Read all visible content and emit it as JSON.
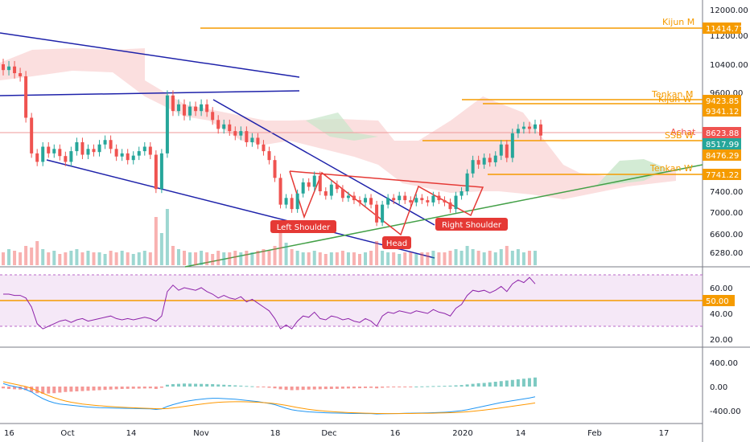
{
  "chart_data": {
    "type": "candlestick",
    "main_pane": {
      "y_ticks": [
        "12000.00",
        "11200.00",
        "10400.00",
        "9600.00",
        "7400.00",
        "7000.00",
        "6600.00",
        "6280.00"
      ],
      "price_tags": [
        {
          "text": "11414.77",
          "color": "#f59b00"
        },
        {
          "text": "9423.85",
          "color": "#f59b00"
        },
        {
          "text": "9341.12",
          "color": "#f59b00"
        },
        {
          "text": "8623.88",
          "color": "#ef5350"
        },
        {
          "text": "8517.99",
          "color": "#26a69a"
        },
        {
          "text": "8476.29",
          "color": "#f59b00"
        },
        {
          "text": "7741.22",
          "color": "#f59b00"
        }
      ],
      "levels": [
        {
          "label": "Kijun M",
          "color": "#f59b00"
        },
        {
          "label": "Tenkan M",
          "color": "#f59b00"
        },
        {
          "label": "Kijun W",
          "color": "#f59b00"
        },
        {
          "label": "Achat",
          "color": "#ef5350"
        },
        {
          "label": "SSB W",
          "color": "#f59b00"
        },
        {
          "label": "Tenkan W",
          "color": "#f59b00"
        }
      ],
      "annotations": [
        "Left Shoulder",
        "Head",
        "Right Shoulder"
      ],
      "candles": [
        {
          "o": 10250,
          "c": 10120
        },
        {
          "o": 10120,
          "c": 10200
        },
        {
          "o": 10200,
          "c": 10050
        },
        {
          "o": 10050,
          "c": 9980
        },
        {
          "o": 9980,
          "c": 9050
        },
        {
          "o": 9050,
          "c": 8250
        },
        {
          "o": 8250,
          "c": 8060
        },
        {
          "o": 8060,
          "c": 8400
        },
        {
          "o": 8400,
          "c": 8250
        },
        {
          "o": 8250,
          "c": 8350
        },
        {
          "o": 8350,
          "c": 8190
        },
        {
          "o": 8190,
          "c": 8060
        },
        {
          "o": 8060,
          "c": 8300
        },
        {
          "o": 8300,
          "c": 8500
        },
        {
          "o": 8500,
          "c": 8220
        },
        {
          "o": 8220,
          "c": 8350
        },
        {
          "o": 8350,
          "c": 8280
        },
        {
          "o": 8280,
          "c": 8450
        },
        {
          "o": 8450,
          "c": 8550
        },
        {
          "o": 8550,
          "c": 8350
        },
        {
          "o": 8350,
          "c": 8180
        },
        {
          "o": 8180,
          "c": 8250
        },
        {
          "o": 8250,
          "c": 8100
        },
        {
          "o": 8100,
          "c": 8200
        },
        {
          "o": 8200,
          "c": 8300
        },
        {
          "o": 8300,
          "c": 8400
        },
        {
          "o": 8400,
          "c": 8220
        },
        {
          "o": 8220,
          "c": 7450
        },
        {
          "o": 7450,
          "c": 8250
        },
        {
          "o": 8250,
          "c": 9550
        },
        {
          "o": 9550,
          "c": 9200
        },
        {
          "o": 9200,
          "c": 9350
        },
        {
          "o": 9350,
          "c": 9100
        },
        {
          "o": 9100,
          "c": 9300
        },
        {
          "o": 9300,
          "c": 9200
        },
        {
          "o": 9200,
          "c": 9350
        },
        {
          "o": 9350,
          "c": 9180
        },
        {
          "o": 9180,
          "c": 9000
        },
        {
          "o": 9000,
          "c": 8800
        },
        {
          "o": 8800,
          "c": 8900
        },
        {
          "o": 8900,
          "c": 8750
        },
        {
          "o": 8750,
          "c": 8650
        },
        {
          "o": 8650,
          "c": 8750
        },
        {
          "o": 8750,
          "c": 8500
        },
        {
          "o": 8500,
          "c": 8600
        },
        {
          "o": 8600,
          "c": 8450
        },
        {
          "o": 8450,
          "c": 8300
        },
        {
          "o": 8300,
          "c": 8100
        },
        {
          "o": 8100,
          "c": 7700
        },
        {
          "o": 7700,
          "c": 7100
        },
        {
          "o": 7100,
          "c": 7250
        },
        {
          "o": 7250,
          "c": 7000
        },
        {
          "o": 7000,
          "c": 7350
        },
        {
          "o": 7350,
          "c": 7600
        },
        {
          "o": 7600,
          "c": 7500
        },
        {
          "o": 7500,
          "c": 7750
        },
        {
          "o": 7750,
          "c": 7400
        },
        {
          "o": 7400,
          "c": 7300
        },
        {
          "o": 7300,
          "c": 7550
        },
        {
          "o": 7550,
          "c": 7450
        },
        {
          "o": 7450,
          "c": 7250
        },
        {
          "o": 7250,
          "c": 7300
        },
        {
          "o": 7300,
          "c": 7200
        },
        {
          "o": 7200,
          "c": 7150
        },
        {
          "o": 7150,
          "c": 7250
        },
        {
          "o": 7250,
          "c": 7100
        },
        {
          "o": 7100,
          "c": 6700
        },
        {
          "o": 6700,
          "c": 7100
        },
        {
          "o": 7100,
          "c": 7250
        },
        {
          "o": 7250,
          "c": 7200
        },
        {
          "o": 7200,
          "c": 7300
        },
        {
          "o": 7300,
          "c": 7200
        },
        {
          "o": 7200,
          "c": 7150
        },
        {
          "o": 7150,
          "c": 7250
        },
        {
          "o": 7250,
          "c": 7200
        },
        {
          "o": 7200,
          "c": 7150
        },
        {
          "o": 7150,
          "c": 7300
        },
        {
          "o": 7300,
          "c": 7200
        },
        {
          "o": 7200,
          "c": 7150
        },
        {
          "o": 7150,
          "c": 7000
        },
        {
          "o": 7000,
          "c": 7300
        },
        {
          "o": 7300,
          "c": 7400
        },
        {
          "o": 7400,
          "c": 7800
        },
        {
          "o": 7800,
          "c": 8100
        },
        {
          "o": 8100,
          "c": 8000
        },
        {
          "o": 8000,
          "c": 8150
        },
        {
          "o": 8150,
          "c": 8050
        },
        {
          "o": 8050,
          "c": 8200
        },
        {
          "o": 8200,
          "c": 8450
        },
        {
          "o": 8450,
          "c": 8150
        },
        {
          "o": 8150,
          "c": 8700
        },
        {
          "o": 8700,
          "c": 8800
        },
        {
          "o": 8800,
          "c": 8850
        },
        {
          "o": 8850,
          "c": 8800
        },
        {
          "o": 8800,
          "c": 8900
        },
        {
          "o": 8900,
          "c": 8650
        }
      ],
      "volume": [
        8,
        10,
        9,
        8,
        12,
        11,
        15,
        10,
        8,
        9,
        7,
        8,
        9,
        10,
        8,
        9,
        8,
        8,
        7,
        9,
        8,
        9,
        8,
        7,
        8,
        9,
        8,
        30,
        20,
        35,
        12,
        10,
        9,
        8,
        8,
        9,
        8,
        7,
        9,
        8,
        8,
        9,
        8,
        9,
        8,
        9,
        10,
        9,
        12,
        20,
        14,
        10,
        9,
        8,
        8,
        9,
        8,
        7,
        8,
        8,
        9,
        8,
        8,
        7,
        8,
        9,
        15,
        9,
        8,
        8,
        7,
        8,
        8,
        7,
        8,
        8,
        9,
        8,
        8,
        9,
        10,
        9,
        12,
        10,
        9,
        8,
        9,
        8,
        10,
        12,
        9,
        10,
        8,
        9,
        9
      ]
    },
    "rsi_pane": {
      "y_ticks": [
        "60.00",
        "40.00",
        "20.00"
      ],
      "tag": {
        "text": "50.00",
        "color": "#f59b00"
      },
      "values": [
        55,
        55,
        54,
        54,
        52,
        45,
        32,
        28,
        30,
        32,
        34,
        35,
        33,
        35,
        36,
        34,
        35,
        36,
        37,
        38,
        36,
        35,
        36,
        35,
        36,
        37,
        36,
        34,
        38,
        57,
        62,
        58,
        60,
        59,
        58,
        60,
        57,
        55,
        52,
        54,
        52,
        51,
        53,
        49,
        51,
        48,
        45,
        42,
        36,
        28,
        31,
        28,
        34,
        38,
        37,
        41,
        36,
        35,
        38,
        37,
        35,
        36,
        34,
        33,
        36,
        34,
        30,
        38,
        41,
        40,
        42,
        41,
        40,
        42,
        41,
        40,
        43,
        41,
        40,
        38,
        44,
        47,
        54,
        58,
        57,
        58,
        56,
        58,
        61,
        57,
        63,
        66,
        64,
        68,
        63
      ]
    },
    "macd_pane": {
      "y_ticks": [
        "400.00",
        "0.00",
        "-400.00"
      ],
      "histogram": [
        -30,
        -40,
        -45,
        -50,
        -60,
        -90,
        -110,
        -120,
        -115,
        -110,
        -100,
        -90,
        -85,
        -80,
        -75,
        -70,
        -65,
        -60,
        -55,
        -50,
        -45,
        -40,
        -38,
        -36,
        -34,
        -32,
        -30,
        -40,
        -20,
        30,
        40,
        45,
        50,
        48,
        46,
        44,
        42,
        40,
        35,
        30,
        25,
        20,
        15,
        10,
        5,
        -5,
        -10,
        -20,
        -30,
        -45,
        -55,
        -60,
        -58,
        -55,
        -50,
        -48,
        -45,
        -42,
        -40,
        -38,
        -35,
        -32,
        -30,
        -28,
        -25,
        -22,
        -30,
        -20,
        -15,
        -10,
        -8,
        -5,
        -3,
        0,
        3,
        5,
        8,
        10,
        12,
        15,
        20,
        25,
        35,
        45,
        55,
        60,
        70,
        80,
        90,
        100,
        110,
        120,
        130,
        140,
        150
      ],
      "macd_line": [
        50,
        20,
        0,
        -20,
        -50,
        -90,
        -150,
        -200,
        -240,
        -270,
        -290,
        -300,
        -310,
        -320,
        -330,
        -340,
        -345,
        -350,
        -352,
        -355,
        -358,
        -360,
        -362,
        -364,
        -366,
        -368,
        -370,
        -380,
        -370,
        -330,
        -300,
        -275,
        -250,
        -235,
        -220,
        -210,
        -200,
        -195,
        -195,
        -200,
        -205,
        -210,
        -220,
        -230,
        -240,
        -250,
        -265,
        -280,
        -300,
        -330,
        -360,
        -385,
        -400,
        -410,
        -420,
        -425,
        -430,
        -435,
        -438,
        -440,
        -442,
        -445,
        -446,
        -447,
        -448,
        -449,
        -455,
        -452,
        -450,
        -448,
        -446,
        -444,
        -442,
        -440,
        -438,
        -436,
        -433,
        -430,
        -426,
        -420,
        -410,
        -400,
        -385,
        -365,
        -345,
        -325,
        -305,
        -285,
        -265,
        -250,
        -235,
        -220,
        -205,
        -190,
        -170
      ],
      "signal_line": [
        80,
        60,
        40,
        20,
        0,
        -30,
        -70,
        -110,
        -150,
        -185,
        -215,
        -240,
        -260,
        -275,
        -290,
        -300,
        -310,
        -318,
        -325,
        -332,
        -338,
        -344,
        -348,
        -352,
        -356,
        -360,
        -363,
        -367,
        -368,
        -365,
        -355,
        -343,
        -330,
        -317,
        -304,
        -292,
        -280,
        -270,
        -262,
        -257,
        -253,
        -251,
        -251,
        -253,
        -256,
        -260,
        -266,
        -274,
        -284,
        -296,
        -312,
        -330,
        -348,
        -364,
        -378,
        -390,
        -400,
        -408,
        -415,
        -421,
        -426,
        -431,
        -435,
        -438,
        -441,
        -443,
        -446,
        -447,
        -448,
        -448,
        -448,
        -447,
        -446,
        -445,
        -444,
        -443,
        -441,
        -439,
        -437,
        -434,
        -430,
        -425,
        -418,
        -410,
        -400,
        -390,
        -378,
        -366,
        -353,
        -340,
        -327,
        -314,
        -300,
        -286,
        -272
      ]
    },
    "x_ticks": [
      "16",
      "Oct",
      "14",
      "Nov",
      "18",
      "Dec",
      "16",
      "2020",
      "14",
      "Feb",
      "17"
    ]
  }
}
